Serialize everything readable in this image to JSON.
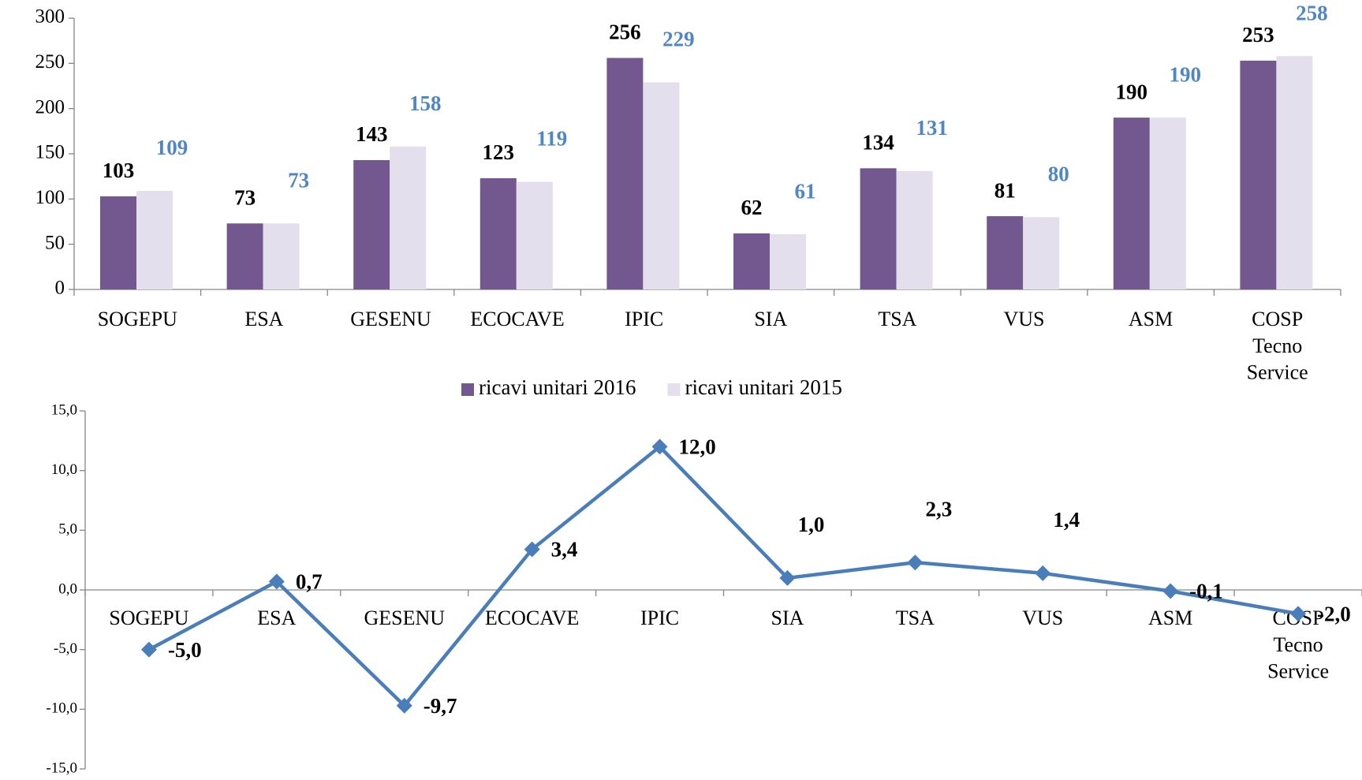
{
  "chart_data": [
    {
      "type": "bar",
      "categories": [
        "SOGEPU",
        "ESA",
        "GESENU",
        "ECOCAVE",
        "IPIC",
        "SIA",
        "TSA",
        "VUS",
        "ASM",
        "COSP Tecno Service"
      ],
      "series": [
        {
          "name": "ricavi unitari 2016",
          "color": "#72588f",
          "label_color": "#000000",
          "values": [
            103,
            73,
            143,
            123,
            256,
            62,
            134,
            81,
            190,
            253
          ]
        },
        {
          "name": "ricavi unitari 2015",
          "color": "#e4dfec",
          "label_color": "#4f86c6",
          "values": [
            109,
            73,
            158,
            119,
            229,
            61,
            131,
            80,
            190,
            258
          ]
        }
      ],
      "ylim": [
        0,
        300
      ],
      "yticks": [
        0,
        50,
        100,
        150,
        200,
        250,
        300
      ],
      "grid": false,
      "legend": "bottom"
    },
    {
      "type": "line",
      "categories": [
        "SOGEPU",
        "ESA",
        "GESENU",
        "ECOCAVE",
        "IPIC",
        "SIA",
        "TSA",
        "VUS",
        "ASM",
        "COSP Tecno Service"
      ],
      "color": "#4a7ebb",
      "values": [
        -5.0,
        0.7,
        -9.7,
        3.4,
        12.0,
        1.0,
        2.3,
        1.4,
        -0.1,
        -2.0
      ],
      "value_labels": [
        "-5,0",
        "0,7",
        "-9,7",
        "3,4",
        "12,0",
        "1,0",
        "2,3",
        "1,4",
        "-0,1",
        "-2,0"
      ],
      "ylim": [
        -15,
        15
      ],
      "yticks": [
        {
          "value": -15,
          "label": "-15,0"
        },
        {
          "value": -10,
          "label": "-10,0"
        },
        {
          "value": -5,
          "label": "-5,0"
        },
        {
          "value": 0,
          "label": "0,0"
        },
        {
          "value": 5,
          "label": "5,0"
        },
        {
          "value": 10,
          "label": "10,0"
        },
        {
          "value": 15,
          "label": "15,0"
        }
      ],
      "grid": false
    }
  ]
}
